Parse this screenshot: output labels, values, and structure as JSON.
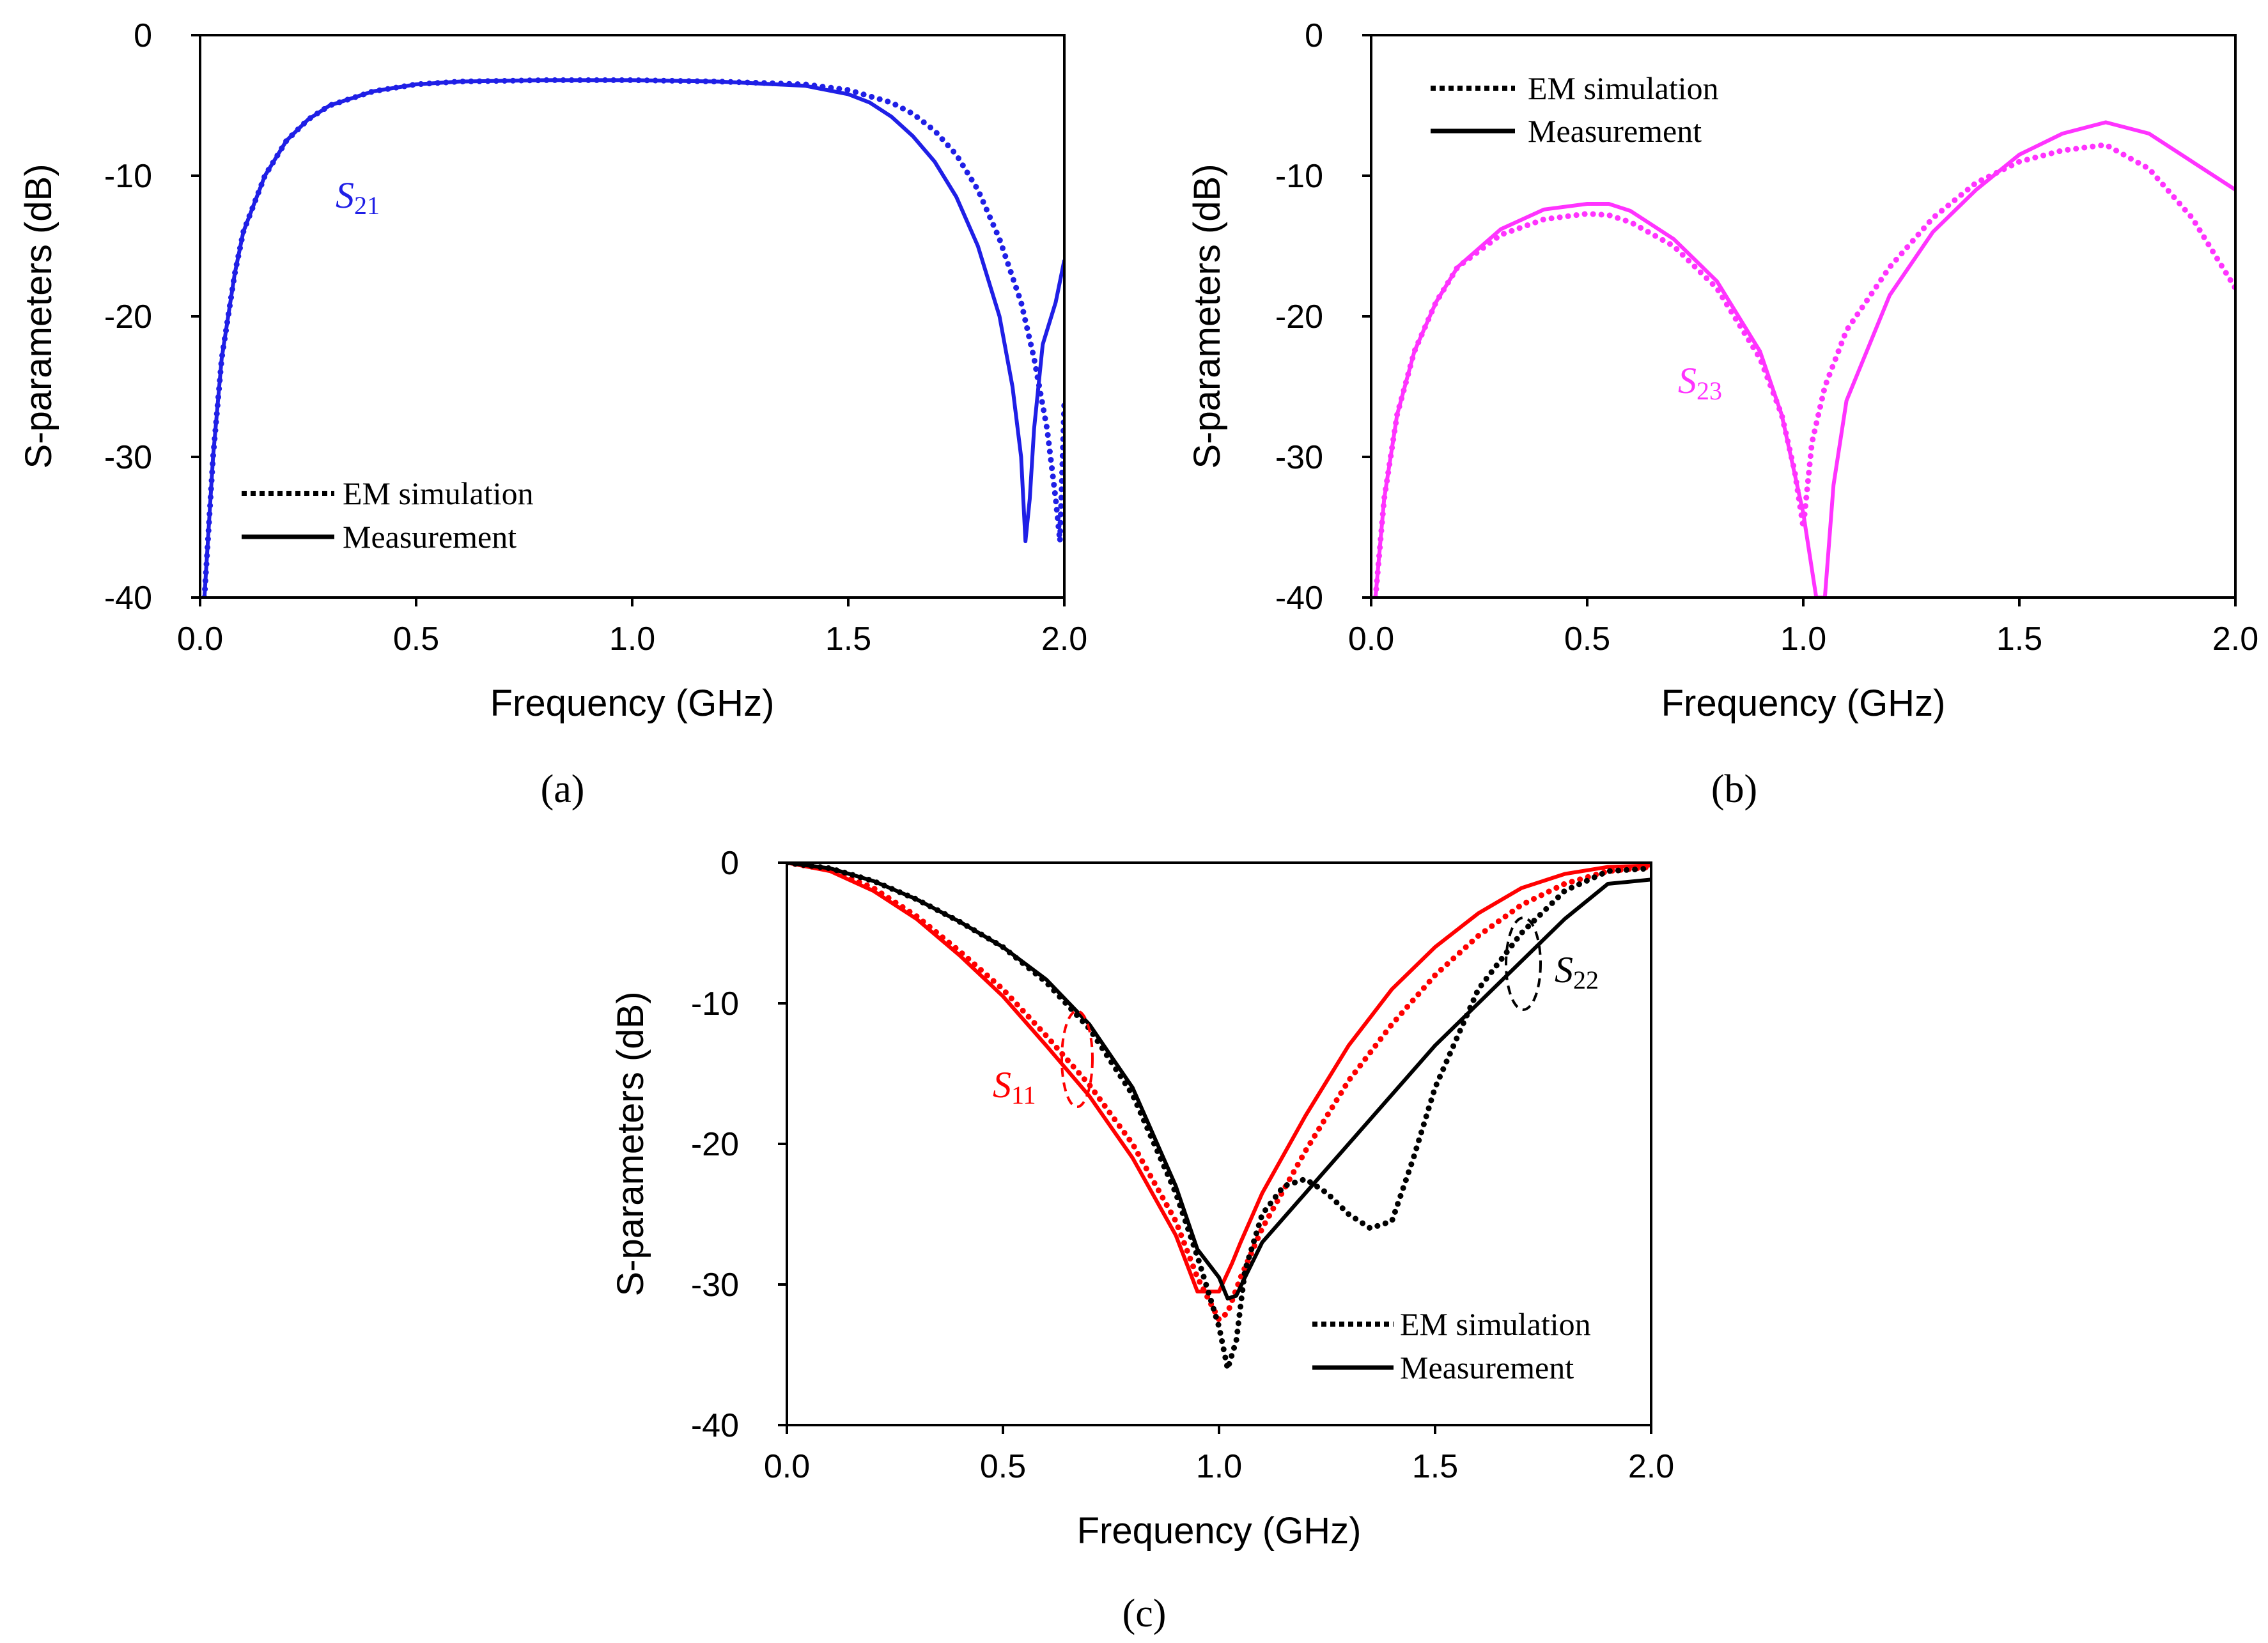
{
  "figure": {
    "captions": [
      "(a)",
      "(b)",
      "(c)"
    ]
  },
  "legend": {
    "simulation_label": "EM simulation",
    "measurement_label": "Measurement"
  },
  "colors": {
    "S21": "#1f1fe6",
    "S23": "#ff33ff",
    "S11": "#ff0000",
    "S22": "#000000"
  },
  "chart_data": [
    {
      "id": "a",
      "type": "line",
      "title": "",
      "xlabel": "Frequency (GHz)",
      "ylabel": "S-parameters (dB)",
      "xlim": [
        0,
        2
      ],
      "ylim": [
        -40,
        0
      ],
      "xticks": [
        "0.0",
        "0.5",
        "1.0",
        "1.5",
        "2.0"
      ],
      "yticks": [
        "0",
        "-10",
        "-20",
        "-30",
        "-40"
      ],
      "legend_position": "bottom-left",
      "annotations": [
        {
          "symbol": "S",
          "subscript": "21",
          "color_key": "S21"
        }
      ],
      "series": [
        {
          "name": "S21 EM simulation",
          "style": "dotted",
          "color_key": "S21",
          "x": [
            0.01,
            0.03,
            0.05,
            0.08,
            0.1,
            0.15,
            0.2,
            0.25,
            0.3,
            0.4,
            0.5,
            0.6,
            0.8,
            1.0,
            1.2,
            1.4,
            1.5,
            1.6,
            1.65,
            1.7,
            1.75,
            1.8,
            1.85,
            1.9,
            1.93,
            1.96,
            1.98,
            1.99,
            2.0
          ],
          "y": [
            -40,
            -30,
            -23,
            -17,
            -14,
            -10,
            -7.5,
            -6,
            -5,
            -4,
            -3.5,
            -3.3,
            -3.2,
            -3.2,
            -3.3,
            -3.5,
            -3.9,
            -4.8,
            -5.6,
            -6.8,
            -8.5,
            -11,
            -14.5,
            -19,
            -23,
            -28,
            -33,
            -36,
            -26
          ]
        },
        {
          "name": "S21 Measurement",
          "style": "solid",
          "color_key": "S21",
          "x": [
            0.01,
            0.03,
            0.05,
            0.08,
            0.1,
            0.15,
            0.2,
            0.25,
            0.3,
            0.4,
            0.5,
            0.6,
            0.8,
            1.0,
            1.2,
            1.4,
            1.5,
            1.55,
            1.6,
            1.65,
            1.7,
            1.75,
            1.8,
            1.85,
            1.88,
            1.9,
            1.91,
            1.92,
            1.93,
            1.95,
            1.98,
            2.0
          ],
          "y": [
            -40,
            -30,
            -23,
            -17,
            -14,
            -10,
            -7.5,
            -6,
            -5,
            -4,
            -3.5,
            -3.3,
            -3.2,
            -3.2,
            -3.3,
            -3.6,
            -4.2,
            -4.8,
            -5.8,
            -7.2,
            -9,
            -11.5,
            -15,
            -20,
            -25,
            -30,
            -36,
            -33,
            -28,
            -22,
            -19,
            -16
          ]
        }
      ]
    },
    {
      "id": "b",
      "type": "line",
      "title": "",
      "xlabel": "Frequency (GHz)",
      "ylabel": "S-parameters (dB)",
      "xlim": [
        0,
        2
      ],
      "ylim": [
        -40,
        0
      ],
      "xticks": [
        "0.0",
        "0.5",
        "1.0",
        "1.5",
        "2.0"
      ],
      "yticks": [
        "0",
        "-10",
        "-20",
        "-30",
        "-40"
      ],
      "legend_position": "top-left",
      "annotations": [
        {
          "symbol": "S",
          "subscript": "23",
          "color_key": "S23"
        }
      ],
      "series": [
        {
          "name": "S23 EM simulation",
          "style": "dotted",
          "color_key": "S23",
          "x": [
            0.01,
            0.03,
            0.06,
            0.1,
            0.15,
            0.2,
            0.3,
            0.4,
            0.5,
            0.55,
            0.6,
            0.7,
            0.8,
            0.9,
            0.95,
            0.98,
            1.0,
            1.02,
            1.05,
            1.1,
            1.2,
            1.3,
            1.4,
            1.5,
            1.6,
            1.7,
            1.8,
            1.9,
            2.0
          ],
          "y": [
            -40,
            -33,
            -27,
            -22.5,
            -19,
            -16.5,
            -14.2,
            -13.1,
            -12.7,
            -12.8,
            -13.3,
            -15,
            -18,
            -23,
            -27,
            -31,
            -35,
            -29,
            -25,
            -21,
            -16.5,
            -13,
            -10.5,
            -9,
            -8.2,
            -7.8,
            -9.5,
            -13,
            -18
          ]
        },
        {
          "name": "S23 Measurement",
          "style": "solid",
          "color_key": "S23",
          "x": [
            0.01,
            0.03,
            0.06,
            0.1,
            0.15,
            0.2,
            0.3,
            0.4,
            0.5,
            0.55,
            0.6,
            0.7,
            0.8,
            0.9,
            0.95,
            1.0,
            1.03,
            1.05,
            1.07,
            1.1,
            1.2,
            1.3,
            1.4,
            1.5,
            1.6,
            1.7,
            1.8,
            1.9,
            2.0
          ],
          "y": [
            -40,
            -33,
            -27,
            -22.5,
            -19,
            -16.5,
            -13.8,
            -12.4,
            -12,
            -12,
            -12.5,
            -14.5,
            -17.5,
            -22.5,
            -27,
            -34,
            -40,
            -40,
            -32,
            -26,
            -18.5,
            -14,
            -11,
            -8.5,
            -7,
            -6.2,
            -7,
            -9,
            -11
          ]
        }
      ]
    },
    {
      "id": "c",
      "type": "line",
      "title": "",
      "xlabel": "Frequency (GHz)",
      "ylabel": "S-parameters (dB)",
      "xlim": [
        0,
        2
      ],
      "ylim": [
        -40,
        0
      ],
      "xticks": [
        "0.0",
        "0.5",
        "1.0",
        "1.5",
        "2.0"
      ],
      "yticks": [
        "0",
        "-10",
        "-20",
        "-30",
        "-40"
      ],
      "legend_position": "bottom-right",
      "annotations": [
        {
          "symbol": "S",
          "subscript": "11",
          "color_key": "S11"
        },
        {
          "symbol": "S",
          "subscript": "22",
          "color_key": "S22"
        }
      ],
      "series": [
        {
          "name": "S11 EM simulation",
          "style": "dotted",
          "color_key": "S11",
          "x": [
            0,
            0.1,
            0.2,
            0.3,
            0.4,
            0.5,
            0.6,
            0.7,
            0.8,
            0.9,
            0.95,
            1.0,
            1.02,
            1.05,
            1.1,
            1.2,
            1.3,
            1.4,
            1.5,
            1.6,
            1.7,
            1.8,
            1.9,
            2.0
          ],
          "y": [
            0,
            -0.5,
            -1.8,
            -3.8,
            -6.3,
            -9,
            -12.3,
            -15.8,
            -20,
            -25.5,
            -29.5,
            -32.5,
            -32,
            -29.5,
            -26,
            -20.5,
            -15.5,
            -11.5,
            -8,
            -5.2,
            -3,
            -1.5,
            -0.6,
            -0.3
          ]
        },
        {
          "name": "S11 Measurement",
          "style": "solid",
          "color_key": "S11",
          "x": [
            0,
            0.1,
            0.2,
            0.3,
            0.4,
            0.5,
            0.6,
            0.7,
            0.8,
            0.9,
            0.95,
            1.0,
            1.03,
            1.05,
            1.1,
            1.2,
            1.3,
            1.4,
            1.5,
            1.6,
            1.7,
            1.8,
            1.9,
            2.0
          ],
          "y": [
            0,
            -0.6,
            -2,
            -4,
            -6.6,
            -9.5,
            -13,
            -16.6,
            -21,
            -26.5,
            -30.5,
            -30.5,
            -28.5,
            -27,
            -23.5,
            -18,
            -13,
            -9,
            -6,
            -3.6,
            -1.8,
            -0.8,
            -0.3,
            -0.2
          ]
        },
        {
          "name": "S22 EM simulation",
          "style": "dotted",
          "color_key": "S22",
          "x": [
            0,
            0.1,
            0.2,
            0.3,
            0.4,
            0.5,
            0.6,
            0.7,
            0.8,
            0.9,
            0.95,
            1.0,
            1.02,
            1.04,
            1.06,
            1.1,
            1.15,
            1.2,
            1.25,
            1.3,
            1.35,
            1.4,
            1.45,
            1.5,
            1.6,
            1.7,
            1.8,
            1.9,
            2.0
          ],
          "y": [
            0,
            -0.4,
            -1.3,
            -2.6,
            -4.2,
            -6,
            -8.5,
            -11.8,
            -16.5,
            -23.5,
            -28,
            -33,
            -36,
            -34,
            -29,
            -25,
            -23,
            -22.5,
            -23.5,
            -25,
            -26,
            -25.5,
            -21,
            -16,
            -9,
            -5,
            -2,
            -0.6,
            -0.4
          ]
        },
        {
          "name": "S22 Measurement",
          "style": "solid",
          "color_key": "S22",
          "x": [
            0,
            0.1,
            0.2,
            0.3,
            0.4,
            0.5,
            0.6,
            0.7,
            0.8,
            0.9,
            0.95,
            1.0,
            1.02,
            1.04,
            1.06,
            1.1,
            1.2,
            1.3,
            1.4,
            1.5,
            1.6,
            1.7,
            1.8,
            1.9,
            2.0
          ],
          "y": [
            0,
            -0.4,
            -1.3,
            -2.6,
            -4.2,
            -6,
            -8.3,
            -11.5,
            -16,
            -23,
            -27.5,
            -29.5,
            -31,
            -30.8,
            -29.5,
            -27,
            -23.5,
            -20,
            -16.5,
            -13,
            -10,
            -7,
            -4,
            -1.5,
            -1.2
          ]
        }
      ]
    }
  ]
}
